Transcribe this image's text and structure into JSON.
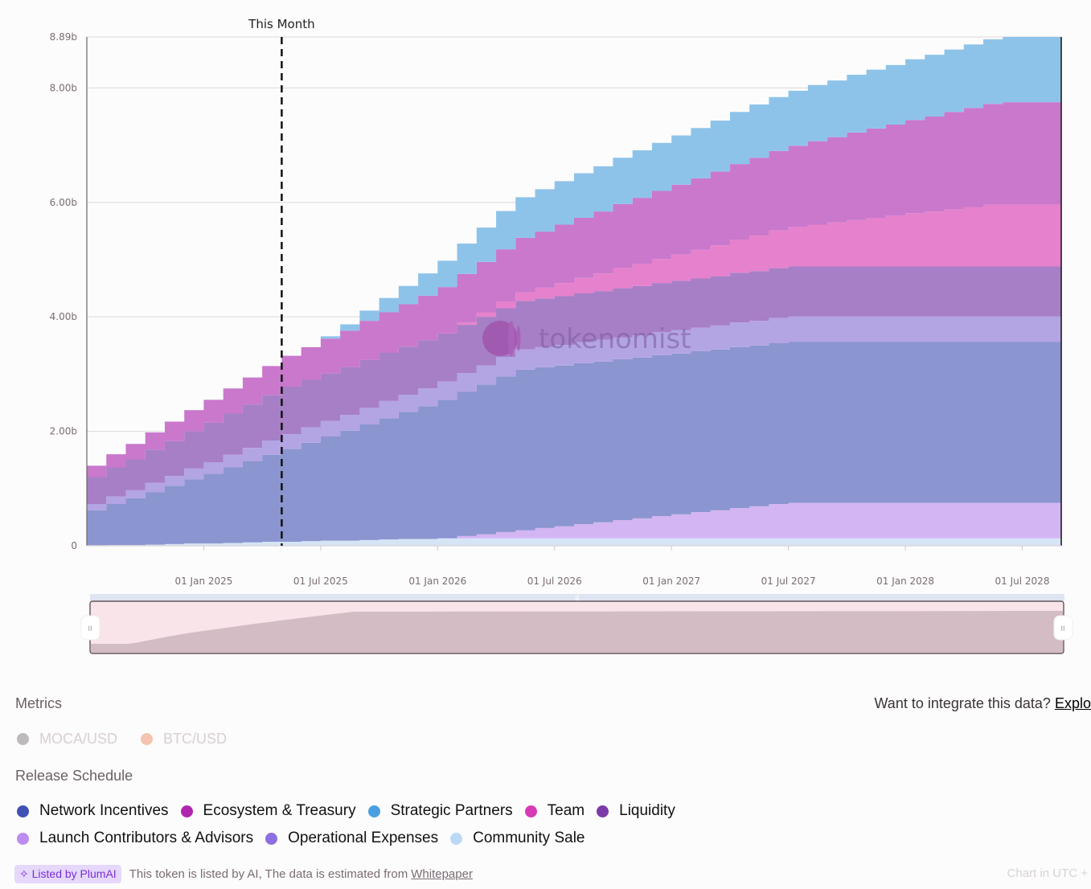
{
  "chart_data": {
    "type": "area",
    "stacked": true,
    "step": "monthly",
    "x_start": "2024-07",
    "x_step": "1 month",
    "x_tick_labels": [
      {
        "label": "01 Jan 2025",
        "month_index": 6
      },
      {
        "label": "01 Jul 2025",
        "month_index": 12
      },
      {
        "label": "01 Jan 2026",
        "month_index": 18
      },
      {
        "label": "01 Jul 2026",
        "month_index": 24
      },
      {
        "label": "01 Jan 2027",
        "month_index": 30
      },
      {
        "label": "01 Jul 2027",
        "month_index": 36
      },
      {
        "label": "01 Jan 2028",
        "month_index": 42
      },
      {
        "label": "01 Jul 2028",
        "month_index": 48
      }
    ],
    "y_ticks": [
      {
        "value": 0,
        "label": "0"
      },
      {
        "value": 2.0,
        "label": "2.00b"
      },
      {
        "value": 4.0,
        "label": "4.00b"
      },
      {
        "value": 6.0,
        "label": "6.00b"
      },
      {
        "value": 8.0,
        "label": "8.00b"
      },
      {
        "value": 8.89,
        "label": "8.89b"
      }
    ],
    "ylim": [
      0,
      8.89
    ],
    "y_unit": "billion tokens",
    "grid": true,
    "marker": {
      "label": "This Month",
      "month_index": 10
    },
    "watermark": "tokenomist",
    "series": [
      {
        "name": "Community Sale",
        "color": "#D5E5F6",
        "values": [
          0,
          0.01,
          0.01,
          0.02,
          0.03,
          0.04,
          0.04,
          0.05,
          0.06,
          0.07,
          0.07,
          0.08,
          0.09,
          0.09,
          0.1,
          0.11,
          0.12,
          0.12,
          0.13,
          0.13,
          0.13,
          0.13,
          0.13,
          0.13,
          0.13,
          0.13,
          0.13,
          0.13,
          0.13,
          0.13,
          0.13,
          0.13,
          0.13,
          0.13,
          0.13,
          0.13,
          0.13,
          0.13,
          0.13,
          0.13,
          0.13,
          0.13,
          0.13,
          0.13,
          0.13,
          0.13,
          0.13,
          0.13,
          0.13,
          0.13
        ]
      },
      {
        "name": "Launch Contributors & Advisors",
        "color": "#D2B5F2",
        "values": [
          0,
          0,
          0,
          0,
          0,
          0,
          0,
          0,
          0,
          0,
          0,
          0,
          0,
          0,
          0,
          0,
          0,
          0,
          0,
          0.04,
          0.07,
          0.11,
          0.14,
          0.18,
          0.21,
          0.25,
          0.28,
          0.32,
          0.35,
          0.39,
          0.42,
          0.46,
          0.49,
          0.53,
          0.56,
          0.6,
          0.62,
          0.62,
          0.62,
          0.62,
          0.62,
          0.62,
          0.62,
          0.62,
          0.62,
          0.62,
          0.62,
          0.62,
          0.62,
          0.62
        ]
      },
      {
        "name": "Network Incentives",
        "color": "#8B95D0",
        "values": [
          0.62,
          0.72,
          0.82,
          0.92,
          1.02,
          1.12,
          1.22,
          1.32,
          1.42,
          1.52,
          1.62,
          1.72,
          1.82,
          1.92,
          2.02,
          2.12,
          2.22,
          2.32,
          2.42,
          2.52,
          2.62,
          2.72,
          2.81,
          2.81,
          2.81,
          2.81,
          2.81,
          2.81,
          2.81,
          2.81,
          2.81,
          2.81,
          2.81,
          2.81,
          2.81,
          2.81,
          2.81,
          2.81,
          2.81,
          2.81,
          2.81,
          2.81,
          2.81,
          2.81,
          2.81,
          2.81,
          2.81,
          2.81,
          2.81,
          2.81
        ]
      },
      {
        "name": "Operational Expenses",
        "color": "#B3A4E4",
        "values": [
          0.11,
          0.13,
          0.14,
          0.16,
          0.17,
          0.19,
          0.2,
          0.22,
          0.23,
          0.25,
          0.26,
          0.27,
          0.27,
          0.28,
          0.29,
          0.3,
          0.3,
          0.31,
          0.32,
          0.33,
          0.33,
          0.34,
          0.35,
          0.35,
          0.36,
          0.37,
          0.38,
          0.38,
          0.39,
          0.4,
          0.41,
          0.41,
          0.42,
          0.43,
          0.43,
          0.44,
          0.45,
          0.45,
          0.45,
          0.45,
          0.45,
          0.45,
          0.45,
          0.45,
          0.45,
          0.45,
          0.45,
          0.45,
          0.45,
          0.45
        ]
      },
      {
        "name": "Liquidity",
        "color": "#A77FC6",
        "values": [
          0.47,
          0.51,
          0.54,
          0.58,
          0.61,
          0.65,
          0.69,
          0.72,
          0.76,
          0.79,
          0.83,
          0.83,
          0.83,
          0.83,
          0.84,
          0.84,
          0.84,
          0.84,
          0.84,
          0.84,
          0.85,
          0.85,
          0.85,
          0.85,
          0.85,
          0.85,
          0.85,
          0.86,
          0.86,
          0.86,
          0.86,
          0.86,
          0.86,
          0.87,
          0.87,
          0.87,
          0.87,
          0.87,
          0.87,
          0.87,
          0.87,
          0.87,
          0.87,
          0.87,
          0.87,
          0.87,
          0.87,
          0.87,
          0.87,
          0.87
        ]
      },
      {
        "name": "Team",
        "color": "#E681CD",
        "values": [
          0,
          0,
          0,
          0,
          0,
          0,
          0,
          0,
          0,
          0,
          0,
          0,
          0,
          0,
          0,
          0,
          0,
          0,
          0,
          0.04,
          0.08,
          0.12,
          0.15,
          0.19,
          0.23,
          0.27,
          0.31,
          0.35,
          0.39,
          0.42,
          0.46,
          0.5,
          0.54,
          0.58,
          0.62,
          0.66,
          0.69,
          0.73,
          0.77,
          0.81,
          0.85,
          0.89,
          0.93,
          0.96,
          1.0,
          1.04,
          1.08,
          1.08,
          1.08,
          1.08
        ]
      },
      {
        "name": "Ecosystem & Treasury",
        "color": "#C978CC",
        "values": [
          0.2,
          0.23,
          0.27,
          0.3,
          0.34,
          0.37,
          0.4,
          0.44,
          0.47,
          0.51,
          0.54,
          0.57,
          0.61,
          0.64,
          0.68,
          0.71,
          0.74,
          0.78,
          0.81,
          0.85,
          0.88,
          0.91,
          0.95,
          0.98,
          1.02,
          1.05,
          1.08,
          1.12,
          1.15,
          1.19,
          1.22,
          1.25,
          1.29,
          1.32,
          1.36,
          1.39,
          1.42,
          1.46,
          1.49,
          1.53,
          1.56,
          1.59,
          1.63,
          1.66,
          1.7,
          1.73,
          1.76,
          1.79,
          1.79,
          1.79
        ]
      },
      {
        "name": "Strategic Partners",
        "color": "#8EC3E9",
        "values": [
          0,
          0,
          0,
          0,
          0,
          0,
          0,
          0,
          0,
          0,
          0,
          0,
          0.04,
          0.11,
          0.18,
          0.25,
          0.32,
          0.39,
          0.46,
          0.53,
          0.6,
          0.67,
          0.71,
          0.74,
          0.76,
          0.78,
          0.79,
          0.81,
          0.83,
          0.84,
          0.86,
          0.88,
          0.89,
          0.91,
          0.93,
          0.94,
          0.96,
          0.98,
          0.99,
          1.01,
          1.03,
          1.04,
          1.06,
          1.08,
          1.09,
          1.11,
          1.13,
          1.14,
          1.14,
          1.14
        ]
      }
    ]
  },
  "metrics": {
    "title": "Metrics",
    "items": [
      {
        "label": "MOCA/USD",
        "color": "#bdbabc"
      },
      {
        "label": "BTC/USD",
        "color": "#f5c4ae"
      }
    ]
  },
  "integrate": {
    "text": "Want to integrate this data?",
    "link": "Explo"
  },
  "release_schedule": {
    "title": "Release Schedule",
    "legend": [
      {
        "label": "Network Incentives",
        "color": "#3F51B5"
      },
      {
        "label": "Ecosystem & Treasury",
        "color": "#B026B0"
      },
      {
        "label": "Strategic Partners",
        "color": "#4A9FE0"
      },
      {
        "label": "Team",
        "color": "#D63AB5"
      },
      {
        "label": "Liquidity",
        "color": "#7B3AA8"
      },
      {
        "label": "Launch Contributors & Advisors",
        "color": "#BC8CEE"
      },
      {
        "label": "Operational Expenses",
        "color": "#8C6FE0"
      },
      {
        "label": "Community Sale",
        "color": "#BBD9F5"
      }
    ]
  },
  "footer": {
    "badge": "Listed by PlumAI",
    "note": "This token is listed by AI, The data is estimated from",
    "link": "Whitepaper",
    "timezone": "Chart in UTC +"
  }
}
